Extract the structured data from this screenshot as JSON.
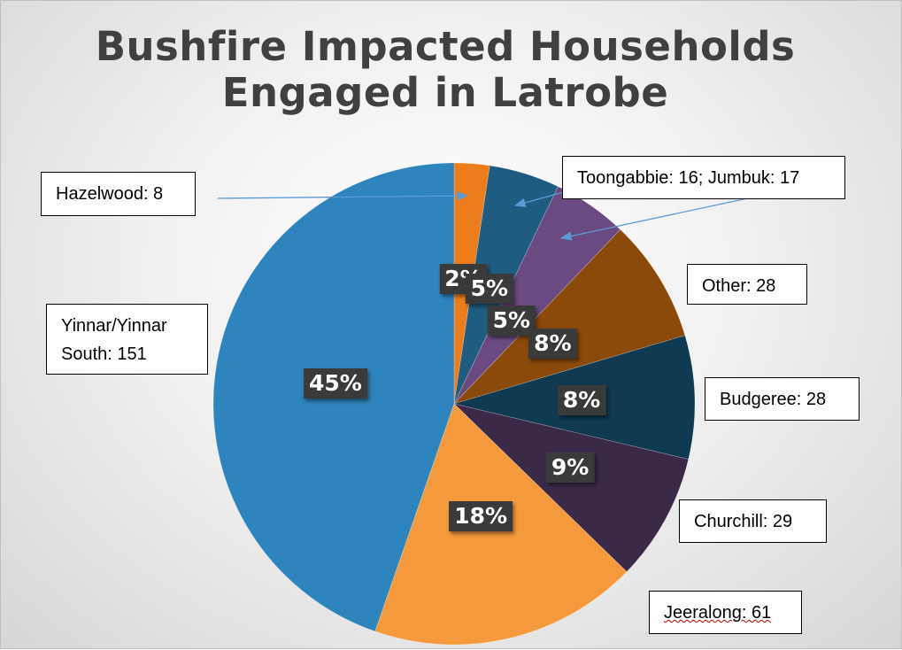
{
  "chart_data": {
    "type": "pie",
    "title": "Bushfire Impacted Households Engaged in Latrobe",
    "title_lines": [
      "Bushfire Impacted Households",
      "Engaged in Latrobe"
    ],
    "start_angle_deg": 0,
    "direction": "clockwise",
    "slices": [
      {
        "label": "Hazelwood: 8",
        "value": 8,
        "pct_label": "2%",
        "color": "#ED7D1A"
      },
      {
        "label": "Toongabbie: 16",
        "value": 16,
        "pct_label": "5%",
        "color": "#1F5C82"
      },
      {
        "label": "Jumbuk: 17",
        "value": 17,
        "pct_label": "5%",
        "color": "#6A4A80"
      },
      {
        "label": "Other: 28",
        "value": 28,
        "pct_label": "8%",
        "color": "#8B4A0A"
      },
      {
        "label": "Budgeree: 28",
        "value": 28,
        "pct_label": "8%",
        "color": "#0F3A52"
      },
      {
        "label": "Churchill: 29",
        "value": 29,
        "pct_label": "9%",
        "color": "#3A2A48"
      },
      {
        "label": "Jeeralong: 61",
        "value": 61,
        "pct_label": "18%",
        "color": "#F59A3C"
      },
      {
        "label": "Yinnar/Yinnar South: 151",
        "value": 151,
        "pct_label": "45%",
        "color": "#2E84BC"
      }
    ],
    "callouts": {
      "hazelwood": "Hazelwood: 8",
      "toongabbie_jumbuk": "Toongabbie: 16; Jumbuk: 17",
      "other": "Other: 28",
      "yinnar": "Yinnar/Yinnar South: 151",
      "yinnar_line1": "Yinnar/Yinnar",
      "yinnar_line2": "South: 151",
      "budgeree": "Budgeree: 28",
      "churchill": "Churchill: 29",
      "jeeralong": "Jeeralong: 61"
    },
    "leader_line_color": "#5B9BD5",
    "legend": "none"
  }
}
